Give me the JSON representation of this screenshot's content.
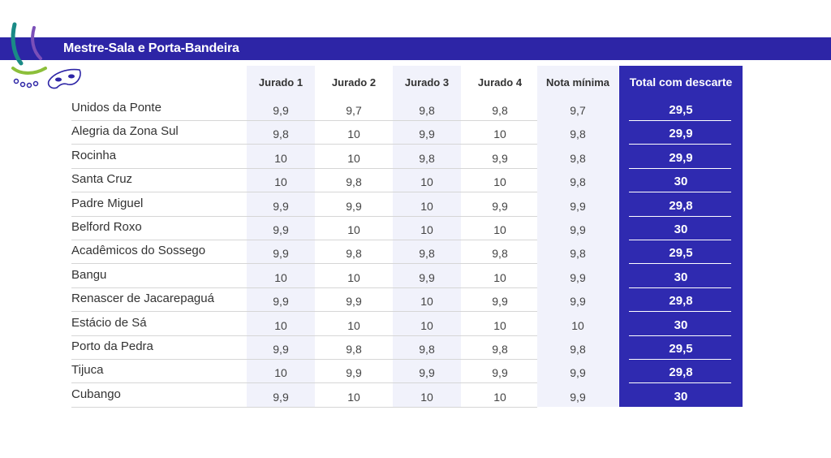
{
  "header": {
    "title": "Mestre-Sala e Porta-Bandeira"
  },
  "colors": {
    "banner": "#2d25a6",
    "total_column": "#2f2ab0",
    "column_tint": "#f1f2fb"
  },
  "table": {
    "columns": [
      "Jurado 1",
      "Jurado 2",
      "Jurado 3",
      "Jurado 4",
      "Nota mínima",
      "Total com descarte"
    ],
    "rows": [
      {
        "name": "Unidos da Ponte",
        "scores": [
          "9,9",
          "9,7",
          "9,8",
          "9,8",
          "9,7"
        ],
        "total": "29,5"
      },
      {
        "name": "Alegria da Zona Sul",
        "scores": [
          "9,8",
          "10",
          "9,9",
          "10",
          "9,8"
        ],
        "total": "29,9"
      },
      {
        "name": "Rocinha",
        "scores": [
          "10",
          "10",
          "9,8",
          "9,9",
          "9,8"
        ],
        "total": "29,9"
      },
      {
        "name": "Santa Cruz",
        "scores": [
          "10",
          "9,8",
          "10",
          "10",
          "9,8"
        ],
        "total": "30"
      },
      {
        "name": "Padre Miguel",
        "scores": [
          "9,9",
          "9,9",
          "10",
          "9,9",
          "9,9"
        ],
        "total": "29,8"
      },
      {
        "name": "Belford Roxo",
        "scores": [
          "9,9",
          "10",
          "10",
          "10",
          "9,9"
        ],
        "total": "30"
      },
      {
        "name": "Acadêmicos do Sossego",
        "scores": [
          "9,9",
          "9,8",
          "9,8",
          "9,8",
          "9,8"
        ],
        "total": "29,5"
      },
      {
        "name": "Bangu",
        "scores": [
          "10",
          "10",
          "9,9",
          "10",
          "9,9"
        ],
        "total": "30"
      },
      {
        "name": "Renascer de Jacarepaguá",
        "scores": [
          "9,9",
          "9,9",
          "10",
          "9,9",
          "9,9"
        ],
        "total": "29,8"
      },
      {
        "name": "Estácio de Sá",
        "scores": [
          "10",
          "10",
          "10",
          "10",
          "10"
        ],
        "total": "30"
      },
      {
        "name": "Porto da Pedra",
        "scores": [
          "9,9",
          "9,8",
          "9,8",
          "9,8",
          "9,8"
        ],
        "total": "29,5"
      },
      {
        "name": "Tijuca",
        "scores": [
          "10",
          "9,9",
          "9,9",
          "9,9",
          "9,9"
        ],
        "total": "29,8"
      },
      {
        "name": "Cubango",
        "scores": [
          "9,9",
          "10",
          "10",
          "10",
          "9,9"
        ],
        "total": "30"
      }
    ]
  }
}
